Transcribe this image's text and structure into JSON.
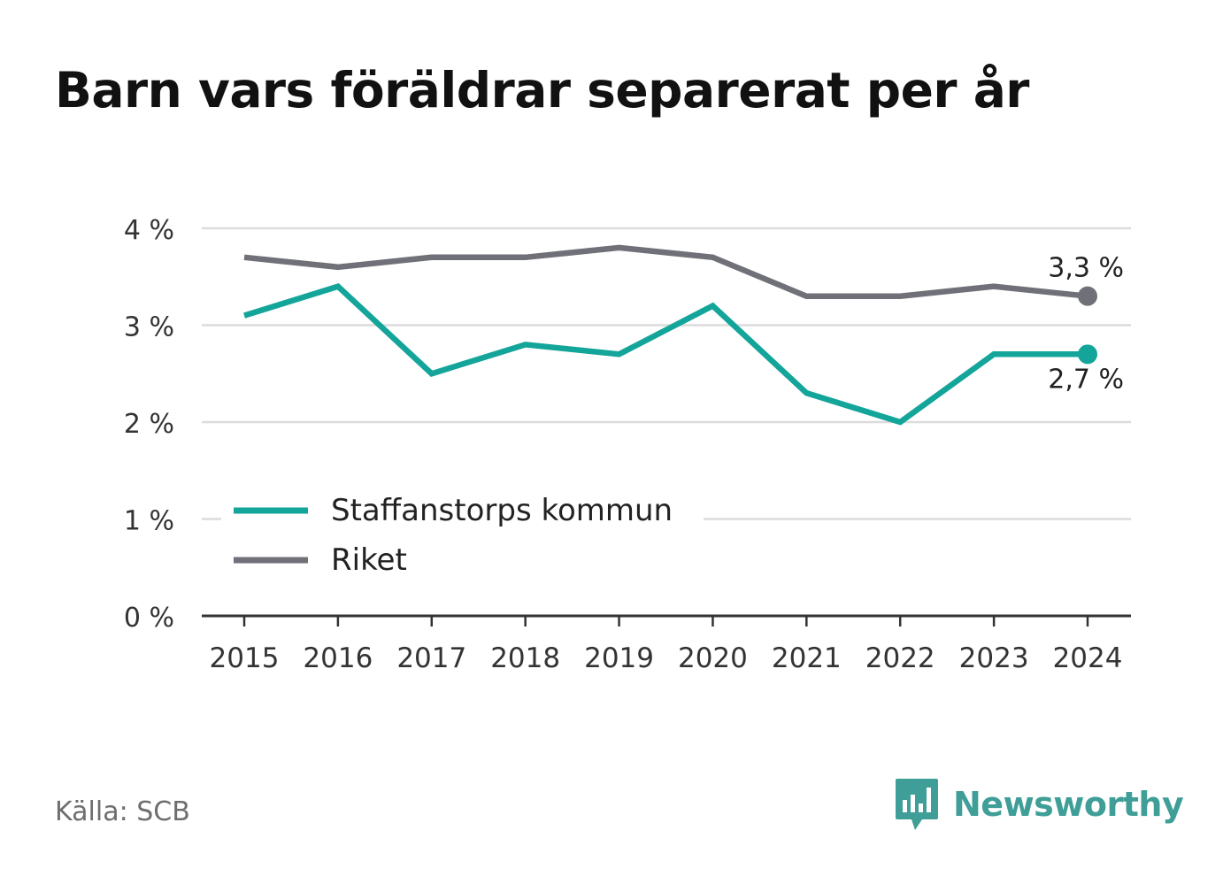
{
  "title": "Barn vars föräldrar separerat per år",
  "source": "Källa: SCB",
  "brand": {
    "name": "Newsworthy",
    "icon": "newsworthy-logo-icon"
  },
  "chart_data": {
    "type": "line",
    "title": "Barn vars föräldrar separerat per år",
    "x": [
      "2015",
      "2016",
      "2017",
      "2018",
      "2019",
      "2020",
      "2021",
      "2022",
      "2023",
      "2024"
    ],
    "series": [
      {
        "name": "Staffanstorps kommun",
        "values": [
          3.1,
          3.4,
          2.5,
          2.8,
          2.7,
          3.2,
          2.3,
          2.0,
          2.7,
          2.7
        ],
        "color": "#14a59a",
        "end_label": "2,7 %"
      },
      {
        "name": "Riket",
        "values": [
          3.7,
          3.6,
          3.7,
          3.7,
          3.8,
          3.7,
          3.3,
          3.3,
          3.4,
          3.3
        ],
        "color": "#707079",
        "end_label": "3,3 %"
      }
    ],
    "ylim": [
      0,
      4
    ],
    "yticks": [
      {
        "value": 0,
        "label": "0 %"
      },
      {
        "value": 1,
        "label": "1 %"
      },
      {
        "value": 2,
        "label": "2 %"
      },
      {
        "value": 3,
        "label": "3 %"
      },
      {
        "value": 4,
        "label": "4 %"
      }
    ],
    "xlabel": "",
    "ylabel": "",
    "grid": true,
    "legend_position": "lower-left"
  }
}
